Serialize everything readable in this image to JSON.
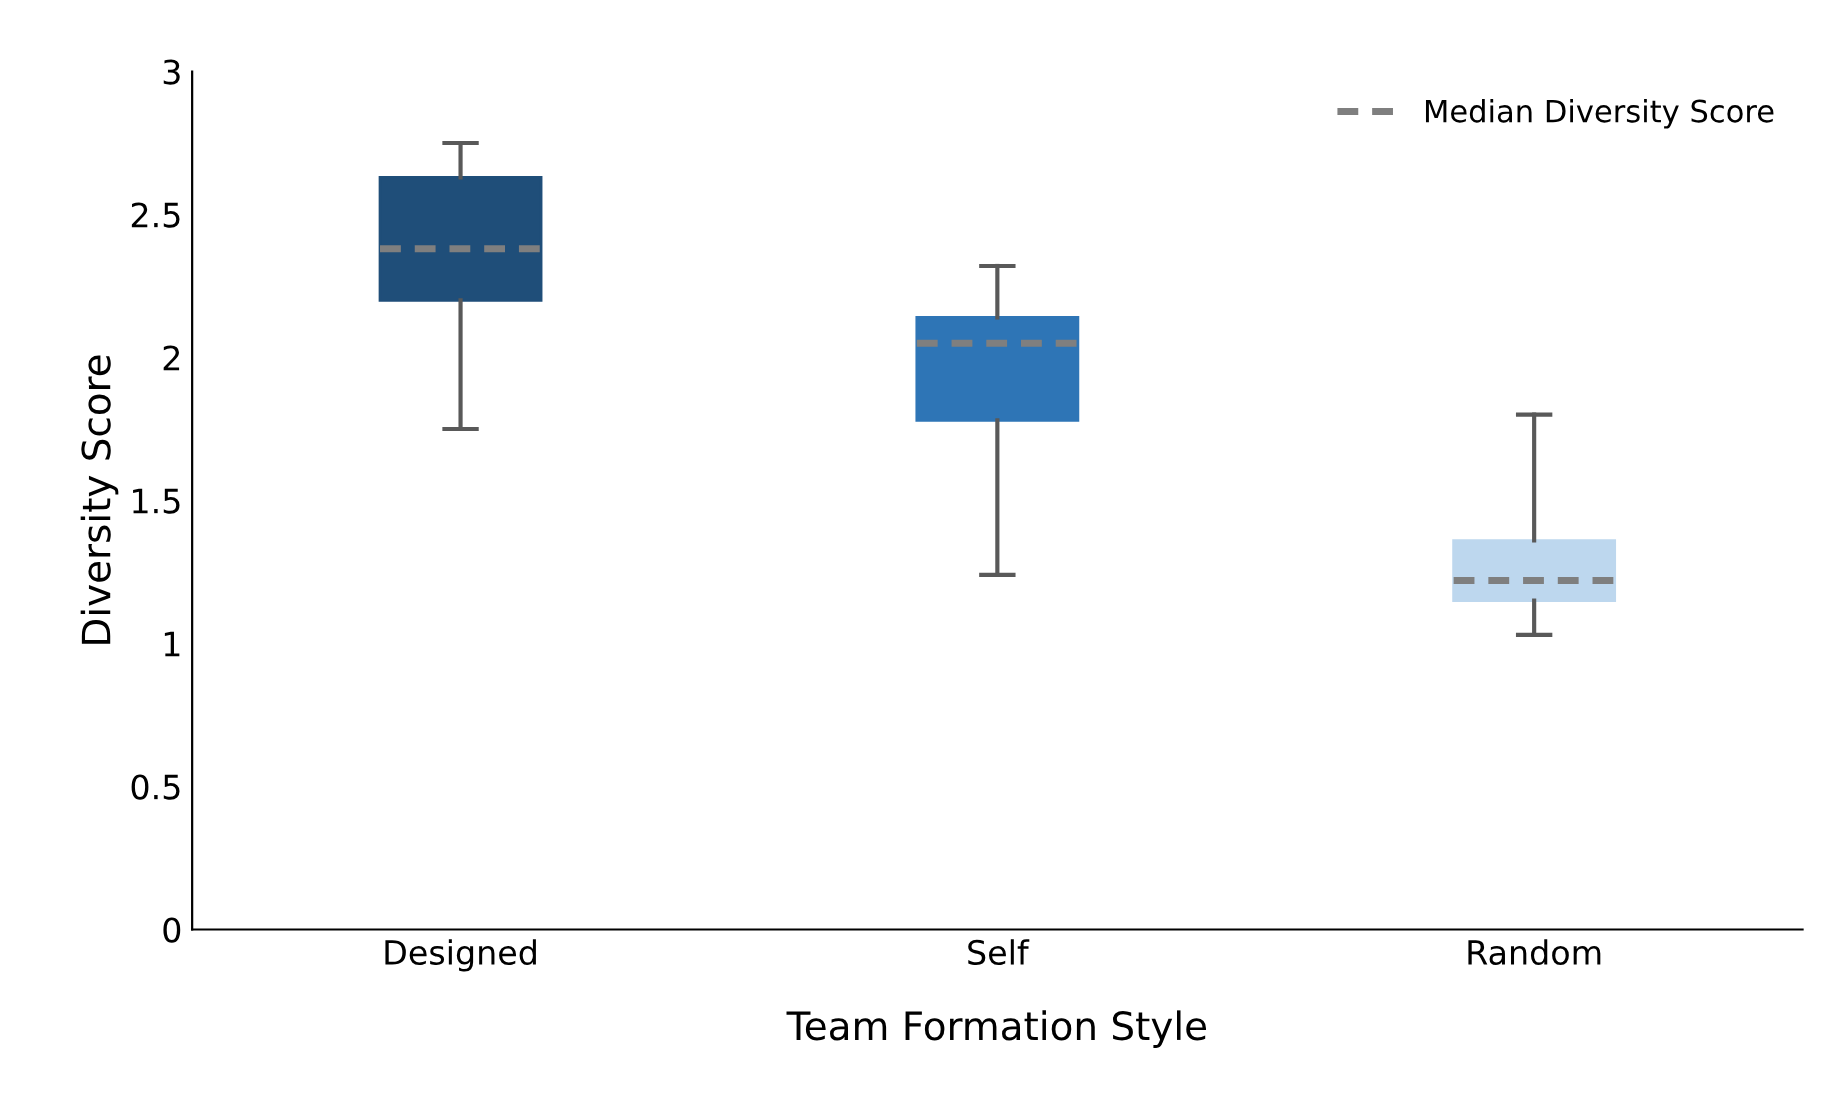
{
  "chart_data": {
    "type": "box",
    "xlabel": "Team Formation Style",
    "ylabel": "Diversity Score",
    "categories": [
      "Designed",
      "Self",
      "Random"
    ],
    "series": [
      {
        "name": "Median Diversity Score",
        "color": "#7f7f7f",
        "colors": [
          "#1f4e79",
          "#2e75b6",
          "#bdd7ee"
        ],
        "boxes": [
          {
            "low": 1.75,
            "q1": 2.2,
            "median": 2.38,
            "q3": 2.63,
            "high": 2.75
          },
          {
            "low": 1.24,
            "q1": 1.78,
            "median": 2.05,
            "q3": 2.14,
            "high": 2.32
          },
          {
            "low": 1.03,
            "q1": 1.15,
            "median": 1.22,
            "q3": 1.36,
            "high": 1.8
          }
        ]
      }
    ],
    "ylim": [
      0,
      3
    ],
    "yticks": [
      0,
      0.5,
      1,
      1.5,
      2,
      2.5,
      3
    ],
    "grid": false,
    "legend": "top right",
    "line_style": "dashed"
  }
}
